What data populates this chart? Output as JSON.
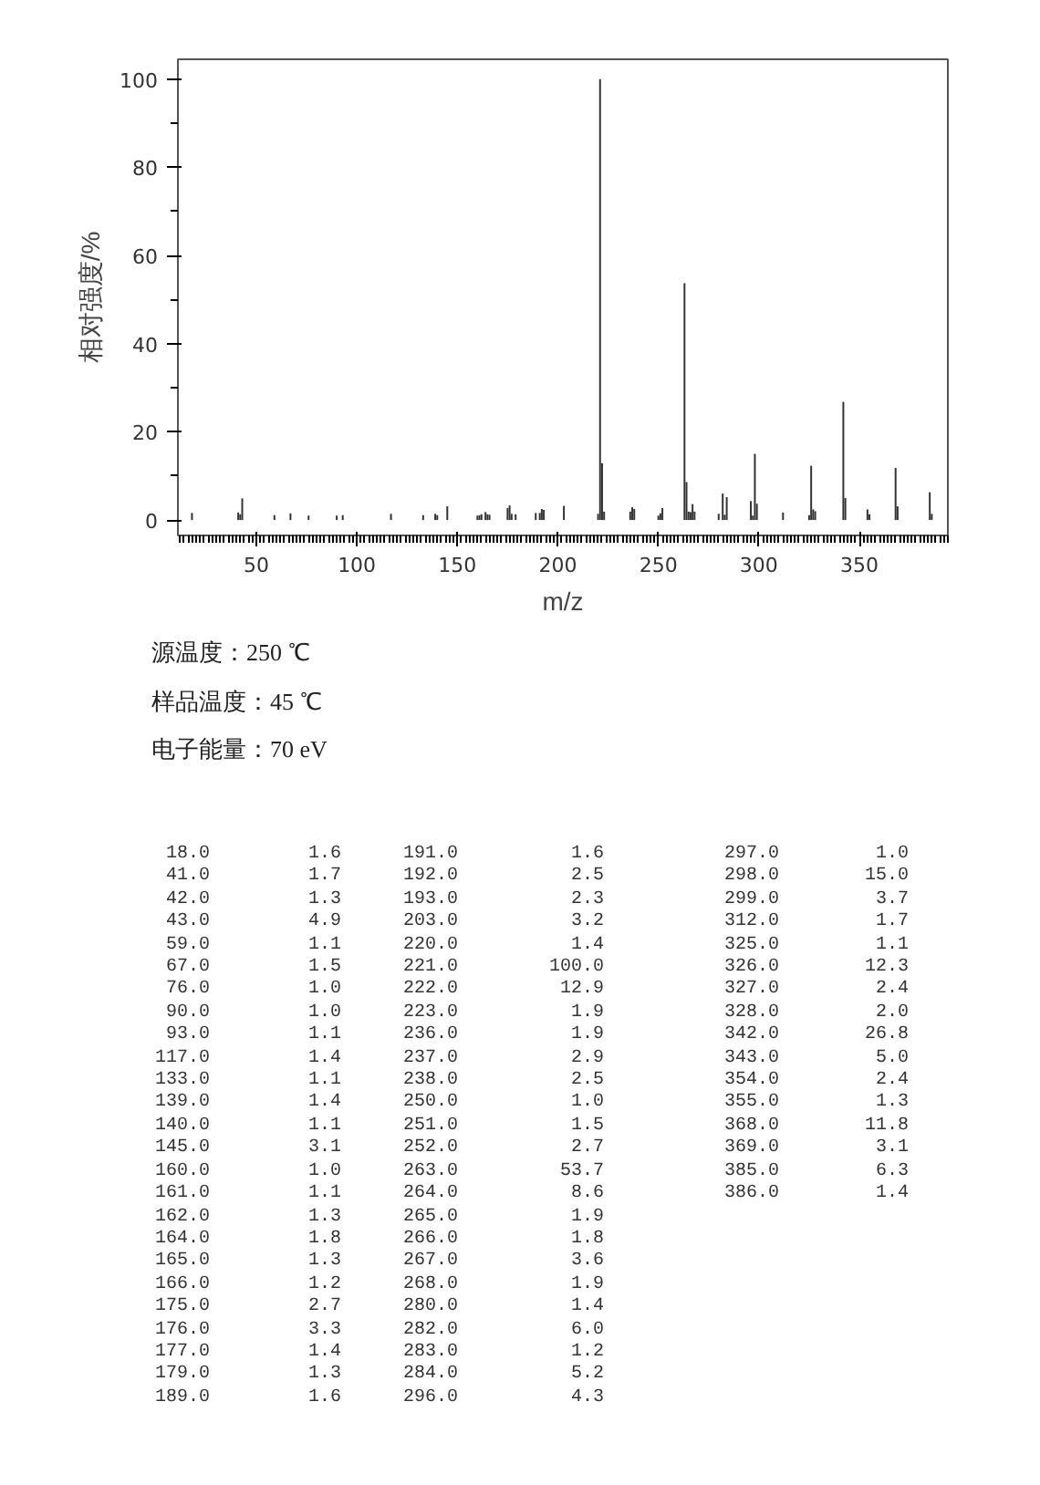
{
  "chart_data": [
    {
      "type": "bar",
      "xlabel": "m/z",
      "ylabel": "相对强度/%",
      "color": "#333333",
      "x": [
        18,
        41,
        42,
        43,
        59,
        67,
        76,
        90,
        93,
        117,
        133,
        139,
        140,
        145,
        160,
        161,
        162,
        164,
        165,
        166,
        175,
        176,
        177,
        179,
        189,
        191,
        192,
        193,
        203,
        220,
        221,
        222,
        223,
        236,
        237,
        238,
        250,
        251,
        252,
        263,
        264,
        265,
        266,
        267,
        268,
        280,
        282,
        283,
        284,
        296,
        297,
        298,
        299,
        312,
        325,
        326,
        327,
        328,
        342,
        343,
        354,
        355,
        368,
        369,
        385,
        386
      ],
      "values": [
        1.6,
        1.7,
        1.3,
        4.9,
        1.1,
        1.5,
        1.0,
        1.0,
        1.1,
        1.4,
        1.1,
        1.4,
        1.1,
        3.1,
        1.0,
        1.1,
        1.3,
        1.8,
        1.3,
        1.2,
        2.7,
        3.3,
        1.4,
        1.3,
        1.6,
        1.6,
        2.5,
        2.3,
        3.2,
        1.4,
        100.0,
        12.9,
        1.9,
        1.9,
        2.9,
        2.5,
        1.0,
        1.5,
        2.7,
        53.7,
        8.6,
        1.9,
        1.8,
        3.6,
        1.9,
        1.4,
        6.0,
        1.2,
        5.2,
        4.3,
        1.0,
        15.0,
        3.7,
        1.7,
        1.1,
        12.3,
        2.4,
        2.0,
        26.8,
        5.0,
        2.4,
        1.3,
        11.8,
        3.1,
        6.3,
        1.4
      ],
      "xlim": [
        11,
        394
      ],
      "ylim": [
        -3.5,
        104.5
      ],
      "xticks": [
        50,
        100,
        150,
        200,
        250,
        300,
        350
      ],
      "yticks": [
        0,
        20,
        40,
        60,
        80,
        100
      ],
      "annotations": [
        "源温度：250 ℃",
        "样品温度：45 ℃",
        "电子能量：70 eV"
      ]
    },
    {
      "type": "other",
      "categories": [
        "18.0",
        "41.0",
        "42.0",
        "43.0",
        "59.0",
        "67.0",
        "76.0",
        "90.0",
        "93.0",
        "117.0",
        "133.0",
        "139.0",
        "140.0",
        "145.0",
        "160.0",
        "161.0",
        "162.0",
        "164.0",
        "165.0",
        "166.0",
        "175.0",
        "176.0",
        "177.0",
        "179.0",
        "189.0",
        "191.0",
        "192.0",
        "193.0",
        "203.0",
        "220.0",
        "221.0",
        "222.0",
        "223.0",
        "236.0",
        "237.0",
        "238.0",
        "250.0",
        "251.0",
        "252.0",
        "263.0",
        "264.0",
        "265.0",
        "266.0",
        "267.0",
        "268.0",
        "280.0",
        "282.0",
        "283.0",
        "284.0",
        "296.0",
        "297.0",
        "298.0",
        "299.0",
        "312.0",
        "325.0",
        "326.0",
        "327.0",
        "328.0",
        "342.0",
        "343.0",
        "354.0",
        "355.0",
        "368.0",
        "369.0",
        "385.0",
        "386.0"
      ],
      "value_labels": [
        "1.6",
        "1.7",
        "1.3",
        "4.9",
        "1.1",
        "1.5",
        "1.0",
        "1.0",
        "1.1",
        "1.4",
        "1.1",
        "1.4",
        "1.1",
        "3.1",
        "1.0",
        "1.1",
        "1.3",
        "1.8",
        "1.3",
        "1.2",
        "2.7",
        "3.3",
        "1.4",
        "1.3",
        "1.6",
        "1.6",
        "2.5",
        "2.3",
        "3.2",
        "1.4",
        "100.0",
        "12.9",
        "1.9",
        "1.9",
        "2.9",
        "2.5",
        "1.0",
        "1.5",
        "2.7",
        "53.7",
        "8.6",
        "1.9",
        "1.8",
        "3.6",
        "1.9",
        "1.4",
        "6.0",
        "1.2",
        "5.2",
        "4.3",
        "1.0",
        "15.0",
        "3.7",
        "1.7",
        "1.1",
        "12.3",
        "2.4",
        "2.0",
        "26.8",
        "5.0",
        "2.4",
        "1.3",
        "11.8",
        "3.1",
        "6.3",
        "1.4"
      ]
    }
  ]
}
